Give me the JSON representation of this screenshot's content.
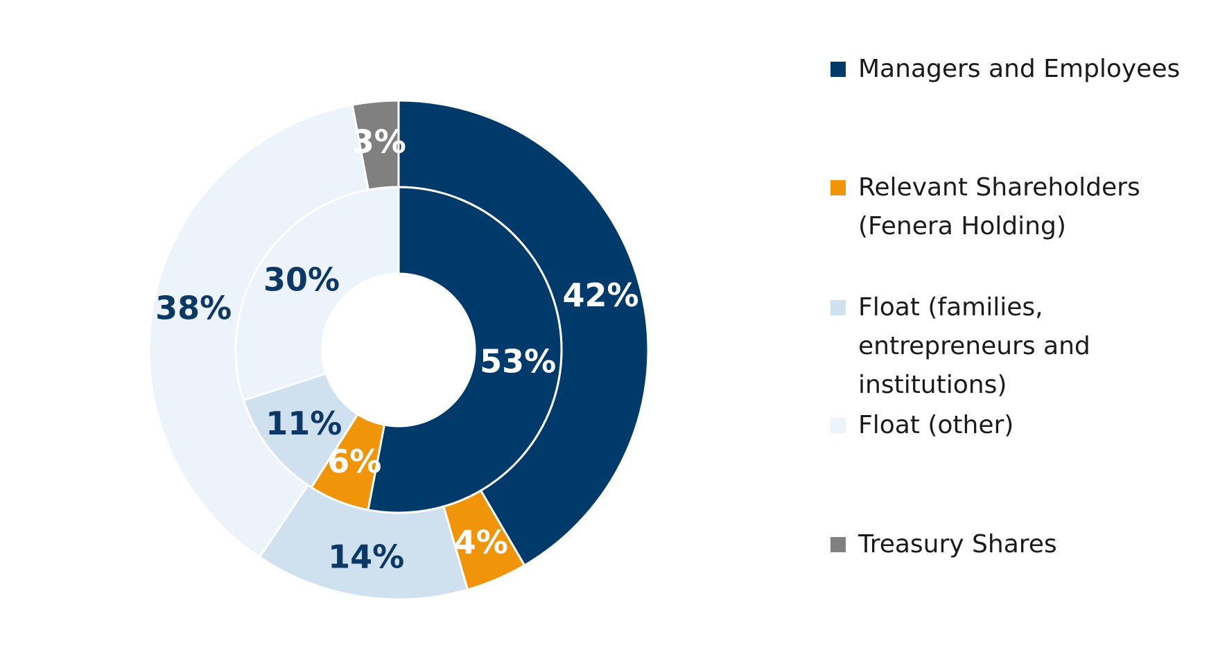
{
  "chart_data": {
    "type": "pie",
    "variant": "nested-donut",
    "direction": "clockwise-from-top",
    "categories": [
      "Managers and Employees",
      "Relevant Shareholders\n(Fenera Holding)",
      "Float (families,\nentrepreneurs and\ninstitutions)",
      "Float (other)",
      "Treasury Shares"
    ],
    "colors": [
      "#003a6b",
      "#f0940a",
      "#cfe0ef",
      "#edf3fa",
      "#808080"
    ],
    "series": [
      {
        "ring": "outer",
        "values": [
          42,
          4,
          14,
          38,
          3
        ],
        "labels": [
          "42%",
          "4%",
          "14%",
          "38%",
          "3%"
        ],
        "label_colors": [
          "#ffffff",
          "#ffffff",
          "#0c3866",
          "#0c3866",
          "#ffffff"
        ]
      },
      {
        "ring": "inner",
        "values": [
          53,
          6,
          11,
          30,
          0
        ],
        "labels": [
          "53%",
          "6%",
          "11%",
          "30%",
          ""
        ],
        "label_colors": [
          "#ffffff",
          "#ffffff",
          "#0c3866",
          "#0c3866",
          "#ffffff"
        ]
      }
    ],
    "legend_position": "right"
  }
}
